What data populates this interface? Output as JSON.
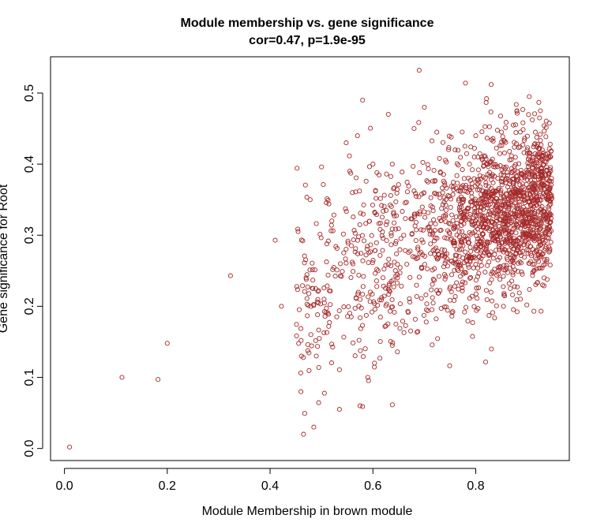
{
  "chart_data": {
    "type": "scatter",
    "title": "Module membership vs. gene significance",
    "subtitle": "cor=0.47, p=1.9e-95",
    "xlabel": "Module Membership in brown module",
    "ylabel": "Gene significance for Root",
    "xlim": [
      -0.027,
      0.982
    ],
    "ylim": [
      -0.017,
      0.551
    ],
    "xticks": [
      0.0,
      0.2,
      0.4,
      0.6,
      0.8
    ],
    "yticks": [
      0.0,
      0.1,
      0.2,
      0.3,
      0.4,
      0.5
    ],
    "xtick_labels": [
      "0.0",
      "0.2",
      "0.4",
      "0.6",
      "0.8"
    ],
    "ytick_labels": [
      "0.0",
      "0.1",
      "0.2",
      "0.3",
      "0.4",
      "0.5"
    ],
    "grid": false,
    "legend": "none",
    "marker": "open-circle",
    "point_color": "#A52A2A",
    "x": [
      0.01,
      0.112,
      0.182,
      0.2,
      0.323,
      0.41,
      0.422,
      0.46,
      0.465,
      0.47,
      0.478,
      0.485,
      0.49,
      0.5,
      0.505,
      0.52,
      0.535,
      0.548,
      0.555,
      0.56,
      0.57,
      0.575,
      0.58,
      0.59,
      0.595,
      0.6,
      0.61,
      0.63,
      0.64,
      0.66,
      0.68,
      0.69,
      0.7,
      0.72,
      0.74,
      0.76,
      0.78,
      0.8,
      0.83,
      0.86,
      0.88,
      0.9,
      0.93
    ],
    "y": [
      0.002,
      0.1,
      0.097,
      0.148,
      0.243,
      0.293,
      0.2,
      0.08,
      0.02,
      0.24,
      0.35,
      0.03,
      0.13,
      0.396,
      0.21,
      0.32,
      0.055,
      0.43,
      0.39,
      0.36,
      0.44,
      0.06,
      0.49,
      0.1,
      0.22,
      0.4,
      0.25,
      0.47,
      0.33,
      0.3,
      0.45,
      0.532,
      0.48,
      0.28,
      0.37,
      0.42,
      0.514,
      0.44,
      0.512,
      0.38,
      0.475,
      0.42,
      0.23
    ],
    "approx_point_count": 1900
  }
}
